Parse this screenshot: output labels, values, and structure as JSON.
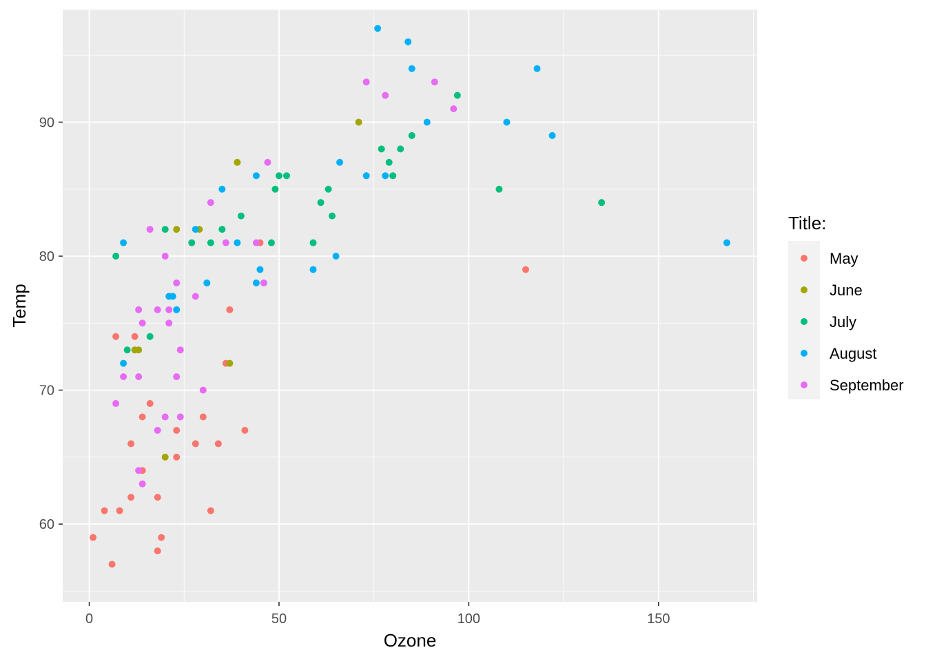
{
  "chart_data": {
    "type": "scatter",
    "xlabel": "Ozone",
    "ylabel": "Temp",
    "xlim": [
      -7,
      176
    ],
    "ylim": [
      54.2,
      98.4
    ],
    "x_ticks": [
      0,
      50,
      100,
      150
    ],
    "y_ticks": [
      60,
      70,
      80,
      90
    ],
    "grid": true,
    "legend": {
      "title": "Title:",
      "position": "right"
    },
    "series": [
      {
        "name": "May",
        "color": "#F8766D",
        "points": [
          [
            1,
            59
          ],
          [
            4,
            61
          ],
          [
            6,
            57
          ],
          [
            7,
            74
          ],
          [
            8,
            61
          ],
          [
            11,
            66
          ],
          [
            11,
            62
          ],
          [
            12,
            74
          ],
          [
            14,
            68
          ],
          [
            14,
            64
          ],
          [
            16,
            69
          ],
          [
            18,
            58
          ],
          [
            18,
            62
          ],
          [
            19,
            59
          ],
          [
            23,
            67
          ],
          [
            23,
            65
          ],
          [
            28,
            66
          ],
          [
            30,
            68
          ],
          [
            32,
            61
          ],
          [
            34,
            66
          ],
          [
            36,
            72
          ],
          [
            37,
            76
          ],
          [
            41,
            67
          ],
          [
            45,
            81
          ],
          [
            115,
            79
          ]
        ]
      },
      {
        "name": "June",
        "color": "#A3A500",
        "points": [
          [
            12,
            73
          ],
          [
            13,
            73
          ],
          [
            20,
            65
          ],
          [
            23,
            82
          ],
          [
            29,
            82
          ],
          [
            37,
            72
          ],
          [
            39,
            87
          ],
          [
            71,
            90
          ]
        ]
      },
      {
        "name": "July",
        "color": "#00BF7D",
        "points": [
          [
            7,
            80
          ],
          [
            10,
            73
          ],
          [
            16,
            74
          ],
          [
            20,
            82
          ],
          [
            27,
            81
          ],
          [
            32,
            81
          ],
          [
            35,
            82
          ],
          [
            40,
            83
          ],
          [
            48,
            81
          ],
          [
            49,
            85
          ],
          [
            50,
            86
          ],
          [
            52,
            86
          ],
          [
            59,
            81
          ],
          [
            61,
            84
          ],
          [
            63,
            85
          ],
          [
            64,
            83
          ],
          [
            77,
            88
          ],
          [
            79,
            87
          ],
          [
            80,
            86
          ],
          [
            82,
            88
          ],
          [
            85,
            89
          ],
          [
            97,
            92
          ],
          [
            108,
            85
          ],
          [
            135,
            84
          ]
        ]
      },
      {
        "name": "August",
        "color": "#00B0F6",
        "points": [
          [
            9,
            81
          ],
          [
            9,
            72
          ],
          [
            21,
            77
          ],
          [
            22,
            77
          ],
          [
            23,
            76
          ],
          [
            28,
            82
          ],
          [
            31,
            78
          ],
          [
            35,
            85
          ],
          [
            39,
            81
          ],
          [
            44,
            86
          ],
          [
            44,
            78
          ],
          [
            45,
            79
          ],
          [
            59,
            79
          ],
          [
            65,
            80
          ],
          [
            66,
            87
          ],
          [
            73,
            86
          ],
          [
            76,
            97
          ],
          [
            78,
            86
          ],
          [
            84,
            96
          ],
          [
            85,
            94
          ],
          [
            89,
            90
          ],
          [
            110,
            90
          ],
          [
            118,
            94
          ],
          [
            122,
            89
          ],
          [
            168,
            81
          ]
        ]
      },
      {
        "name": "September",
        "color": "#E76BF3",
        "points": [
          [
            7,
            69
          ],
          [
            9,
            71
          ],
          [
            13,
            76
          ],
          [
            13,
            71
          ],
          [
            13,
            64
          ],
          [
            14,
            75
          ],
          [
            14,
            63
          ],
          [
            16,
            82
          ],
          [
            18,
            76
          ],
          [
            18,
            67
          ],
          [
            20,
            80
          ],
          [
            20,
            68
          ],
          [
            21,
            76
          ],
          [
            21,
            75
          ],
          [
            23,
            78
          ],
          [
            23,
            71
          ],
          [
            24,
            73
          ],
          [
            24,
            68
          ],
          [
            28,
            77
          ],
          [
            30,
            70
          ],
          [
            32,
            84
          ],
          [
            36,
            81
          ],
          [
            44,
            81
          ],
          [
            46,
            78
          ],
          [
            47,
            87
          ],
          [
            73,
            93
          ],
          [
            78,
            92
          ],
          [
            91,
            93
          ],
          [
            96,
            91
          ]
        ]
      }
    ]
  }
}
